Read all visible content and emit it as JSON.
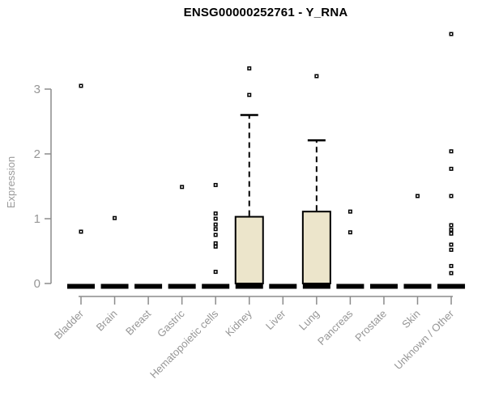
{
  "title": "ENSG00000252761 - Y_RNA",
  "y_axis": {
    "label": "Expression"
  },
  "chart_data": {
    "type": "boxplot",
    "title": "ENSG00000252761 - Y_RNA",
    "xlabel": "",
    "ylabel": "Expression",
    "ylim": [
      0,
      3.9
    ],
    "yticks": [
      0,
      1,
      2,
      3
    ],
    "grid": false,
    "legend": "none",
    "categories": [
      "Bladder",
      "Brain",
      "Breast",
      "Gastric",
      "Hematopoietic cells",
      "Kidney",
      "Liver",
      "Lung",
      "Pancreas",
      "Prostate",
      "Skin",
      "Unknown / Other"
    ],
    "series": [
      {
        "category": "Bladder",
        "q1": 0,
        "median": 0,
        "q3": 0,
        "whisker_low": 0,
        "whisker_high": 0,
        "outliers": [
          3.05,
          0.8
        ]
      },
      {
        "category": "Brain",
        "q1": 0,
        "median": 0,
        "q3": 0,
        "whisker_low": 0,
        "whisker_high": 0,
        "outliers": [
          1.01
        ]
      },
      {
        "category": "Breast",
        "q1": 0,
        "median": 0,
        "q3": 0,
        "whisker_low": 0,
        "whisker_high": 0,
        "outliers": []
      },
      {
        "category": "Gastric",
        "q1": 0,
        "median": 0,
        "q3": 0,
        "whisker_low": 0,
        "whisker_high": 0,
        "outliers": [
          1.49
        ]
      },
      {
        "category": "Hematopoietic cells",
        "q1": 0,
        "median": 0,
        "q3": 0,
        "whisker_low": 0,
        "whisker_high": 0,
        "outliers": [
          1.52,
          1.08,
          1.0,
          0.91,
          0.84,
          0.75,
          0.62,
          0.57,
          0.18
        ]
      },
      {
        "category": "Kidney",
        "q1": 0,
        "median": 0,
        "q3": 1.03,
        "whisker_low": 0,
        "whisker_high": 2.6,
        "outliers": [
          3.32,
          2.91
        ]
      },
      {
        "category": "Liver",
        "q1": 0,
        "median": 0,
        "q3": 0,
        "whisker_low": 0,
        "whisker_high": 0,
        "outliers": []
      },
      {
        "category": "Lung",
        "q1": 0,
        "median": 0,
        "q3": 1.11,
        "whisker_low": 0,
        "whisker_high": 2.21,
        "outliers": [
          3.2
        ]
      },
      {
        "category": "Pancreas",
        "q1": 0,
        "median": 0,
        "q3": 0,
        "whisker_low": 0,
        "whisker_high": 0,
        "outliers": [
          1.11,
          0.79
        ]
      },
      {
        "category": "Prostate",
        "q1": 0,
        "median": 0,
        "q3": 0,
        "whisker_low": 0,
        "whisker_high": 0,
        "outliers": []
      },
      {
        "category": "Skin",
        "q1": 0,
        "median": 0,
        "q3": 0,
        "whisker_low": 0,
        "whisker_high": 0,
        "outliers": [
          1.35
        ]
      },
      {
        "category": "Unknown / Other",
        "q1": 0,
        "median": 0,
        "q3": 0,
        "whisker_low": 0,
        "whisker_high": 0,
        "outliers": [
          3.85,
          2.04,
          1.77,
          1.35,
          0.9,
          0.83,
          0.77,
          0.6,
          0.52,
          0.27,
          0.16
        ]
      }
    ],
    "colors": {
      "box_fill": "#ece5cb",
      "box_border": "#000000",
      "median": "#000000",
      "whisker": "#000000",
      "outlier": "#000000",
      "axis": "#8c8c8c",
      "tick_label": "#969696",
      "title": "#000000"
    }
  }
}
